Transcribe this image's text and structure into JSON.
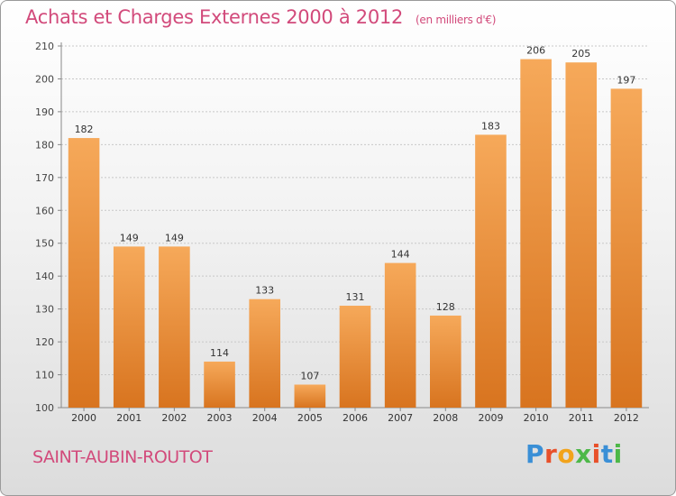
{
  "title": "Achats et Charges Externes 2000 à 2012",
  "subtitle": "(en milliers d'€)",
  "commune": "SAINT-AUBIN-ROUTOT",
  "logo": {
    "text": "Proxiti",
    "letters": [
      "P",
      "r",
      "o",
      "x",
      "i",
      "t",
      "i"
    ],
    "colors": [
      "#3a8fd6",
      "#e8502a",
      "#f2a31b",
      "#4db848",
      "#e8502a",
      "#3a8fd6",
      "#4db848"
    ]
  },
  "colors": {
    "bar_top": "#f6a95a",
    "bar_bottom": "#d8741f",
    "title": "#d24a7b",
    "grid": "#c8c8c8"
  },
  "chart_data": {
    "type": "bar",
    "categories": [
      "2000",
      "2001",
      "2002",
      "2003",
      "2004",
      "2005",
      "2006",
      "2007",
      "2008",
      "2009",
      "2010",
      "2011",
      "2012"
    ],
    "values": [
      182,
      149,
      149,
      114,
      133,
      107,
      131,
      144,
      128,
      183,
      206,
      205,
      197
    ],
    "title": "Achats et Charges Externes 2000 à 2012",
    "subtitle": "(en milliers d'€)",
    "xlabel": "",
    "ylabel": "",
    "ylim": [
      100,
      210
    ],
    "yticks": [
      100,
      110,
      120,
      130,
      140,
      150,
      160,
      170,
      180,
      190,
      200,
      210
    ],
    "grid": true,
    "data_labels": true
  }
}
